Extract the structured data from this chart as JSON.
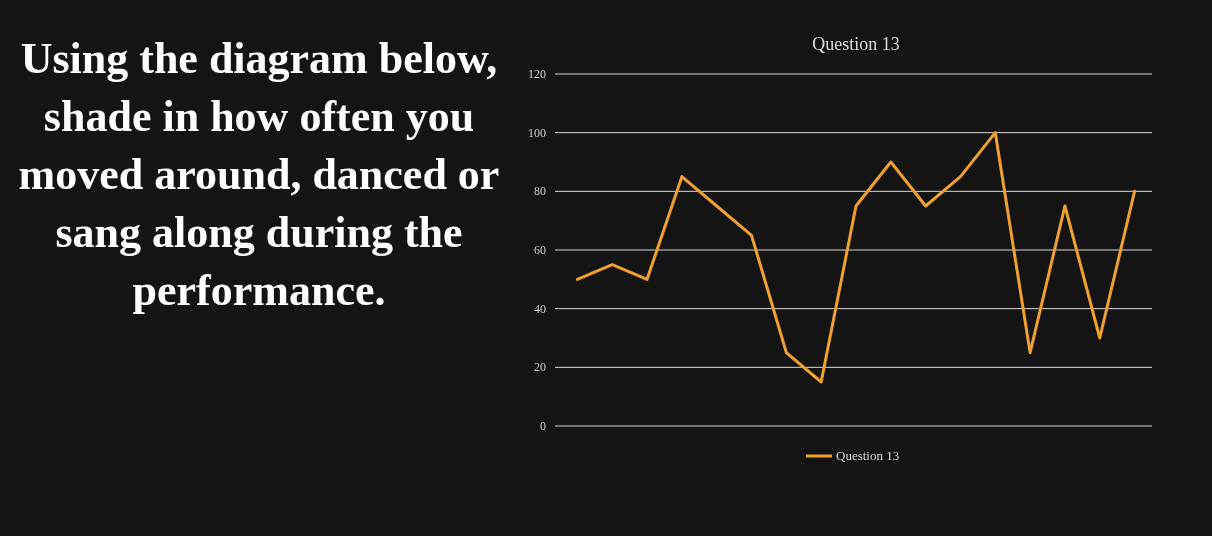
{
  "chart_data": {
    "type": "line",
    "title": "Question 13",
    "annotations": [
      "Using the diagram below, shade in how often you moved around, danced or sang along during the performance."
    ],
    "categories": [
      null,
      null,
      null,
      null,
      null,
      null,
      null,
      null,
      null,
      null,
      null,
      null,
      null,
      null,
      null,
      null,
      null
    ],
    "series": [
      {
        "name": "Question 13",
        "color": "#f0a030",
        "values": [
          50,
          55,
          50,
          85,
          75,
          65,
          25,
          15,
          75,
          90,
          75,
          85,
          100,
          25,
          75,
          30,
          80
        ]
      }
    ],
    "ylim": [
      0,
      120
    ],
    "yticks": [
      0,
      20,
      40,
      60,
      80,
      100,
      120
    ],
    "grid": "y",
    "legend": "bottom",
    "marker": "none"
  }
}
